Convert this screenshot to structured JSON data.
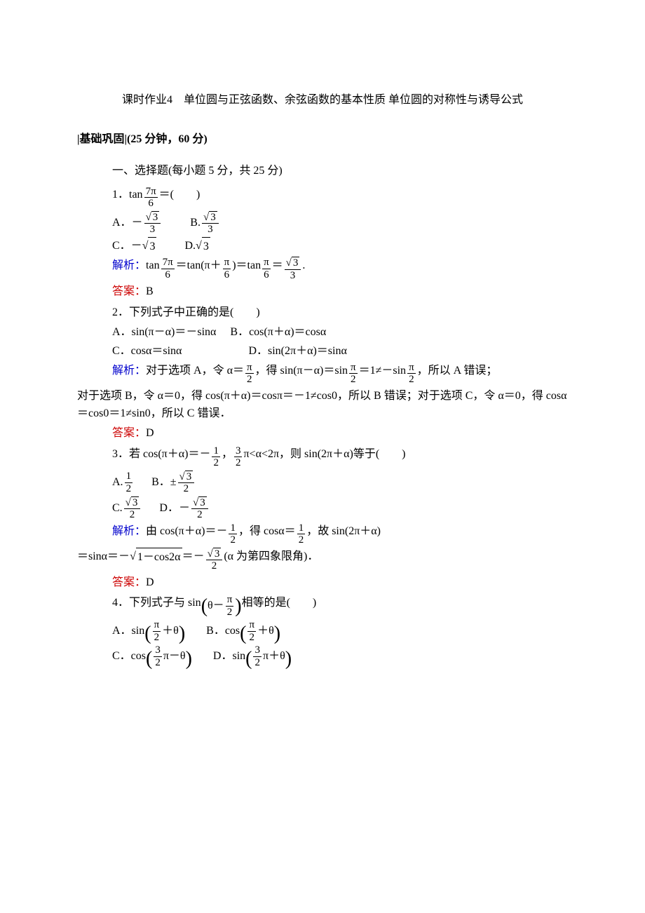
{
  "title": "课时作业4　单位圆与正弦函数、余弦函数的基本性质 单位圆的对称性与诱导公式",
  "section_header": "|基础巩固|(25 分钟，60 分)",
  "subheader": "一、选择题(每小题 5 分，共 25 分)",
  "colors": {
    "explain_label": "#0000cc",
    "answer_label": "#cc0000",
    "text": "#000000"
  },
  "labels": {
    "explain": "解析：",
    "answer": "答案："
  },
  "q1": {
    "stem_prefix": "1．tan",
    "stem_suffix": "＝(　　)",
    "frac": {
      "num": "7π",
      "den": "6"
    },
    "optA_pre": "A．－",
    "optA_frac": {
      "num_sqrt": "3",
      "den": "3"
    },
    "optB_pre": "B.",
    "optB_frac": {
      "num_sqrt": "3",
      "den": "3"
    },
    "optC": "C．－",
    "optC_sqrt": "3",
    "optD": "D.",
    "optD_sqrt": "3",
    "expl_pre": "tan",
    "expl_f1": {
      "num": "7π",
      "den": "6"
    },
    "expl_mid1": "＝tan(π＋",
    "expl_f2": {
      "num": "π",
      "den": "6"
    },
    "expl_mid2": ")＝tan",
    "expl_f3": {
      "num": "π",
      "den": "6"
    },
    "expl_mid3": "＝",
    "expl_f4": {
      "num_sqrt": "3",
      "den": "3"
    },
    "expl_end": ".",
    "answer": "B"
  },
  "q2": {
    "stem": "2．下列式子中正确的是(　　)",
    "optA": "A．sin(π－α)＝－sinα",
    "optB": "B．cos(π＋α)＝cosα",
    "optC": "C．cosα＝sinα",
    "optD": "D．sin(2π＋α)＝sinα",
    "expl1_pre": "对于选项 A，令 α＝",
    "expl1_f1": {
      "num": "π",
      "den": "2"
    },
    "expl1_mid1": "，得 sin(π－α)＝sin",
    "expl1_f2": {
      "num": "π",
      "den": "2"
    },
    "expl1_mid2": "＝1≠－sin",
    "expl1_f3": {
      "num": "π",
      "den": "2"
    },
    "expl1_end": "，所以 A 错误；",
    "expl2": "对于选项 B，令 α＝0，得 cos(π＋α)＝cosπ＝－1≠cos0，所以 B 错误；对于选项 C，令 α＝0，得 cosα＝cos0＝1≠sin0，所以 C 错误．",
    "answer": "D"
  },
  "q3": {
    "stem_pre": "3．若 cos(π＋α)＝－",
    "stem_f1": {
      "num": "1",
      "den": "2"
    },
    "stem_mid": "，",
    "stem_f2": {
      "num": "3",
      "den": "2"
    },
    "stem_suffix": "π<α<2π，则 sin(2π＋α)等于(　　)",
    "optA_pre": "A.",
    "optA_frac": {
      "num": "1",
      "den": "2"
    },
    "optB_pre": "B．±",
    "optB_frac": {
      "num_sqrt": "3",
      "den": "2"
    },
    "optC_pre": "C.",
    "optC_frac": {
      "num_sqrt": "3",
      "den": "2"
    },
    "optD_pre": "D．－",
    "optD_frac": {
      "num_sqrt": "3",
      "den": "2"
    },
    "expl1_pre": "由 cos(π＋α)＝－",
    "expl1_f1": {
      "num": "1",
      "den": "2"
    },
    "expl1_mid1": "，得 cosα＝",
    "expl1_f2": {
      "num": "1",
      "den": "2"
    },
    "expl1_end": "，故 sin(2π＋α)",
    "expl2_pre": "＝sinα＝－",
    "expl2_sqrt": "1－cos2α",
    "expl2_mid": "＝－",
    "expl2_frac": {
      "num_sqrt": "3",
      "den": "2"
    },
    "expl2_end": " (α 为第四象限角)．",
    "answer": "D"
  },
  "q4": {
    "stem_pre": "4．下列式子与 sin",
    "stem_inner_pre": "θ－",
    "stem_inner_frac": {
      "num": "π",
      "den": "2"
    },
    "stem_suffix": "相等的是(　　)",
    "optA_pre": "A．sin",
    "optA_frac": {
      "num": "π",
      "den": "2"
    },
    "optA_suf": "＋θ",
    "optB_pre": "B．cos",
    "optB_frac": {
      "num": "π",
      "den": "2"
    },
    "optB_suf": "＋θ",
    "optC_pre": "C．cos",
    "optC_frac": {
      "num": "3",
      "den": "2"
    },
    "optC_suf": "π－θ",
    "optD_pre": "D．sin",
    "optD_frac": {
      "num": "3",
      "den": "2"
    },
    "optD_suf": "π＋θ"
  }
}
